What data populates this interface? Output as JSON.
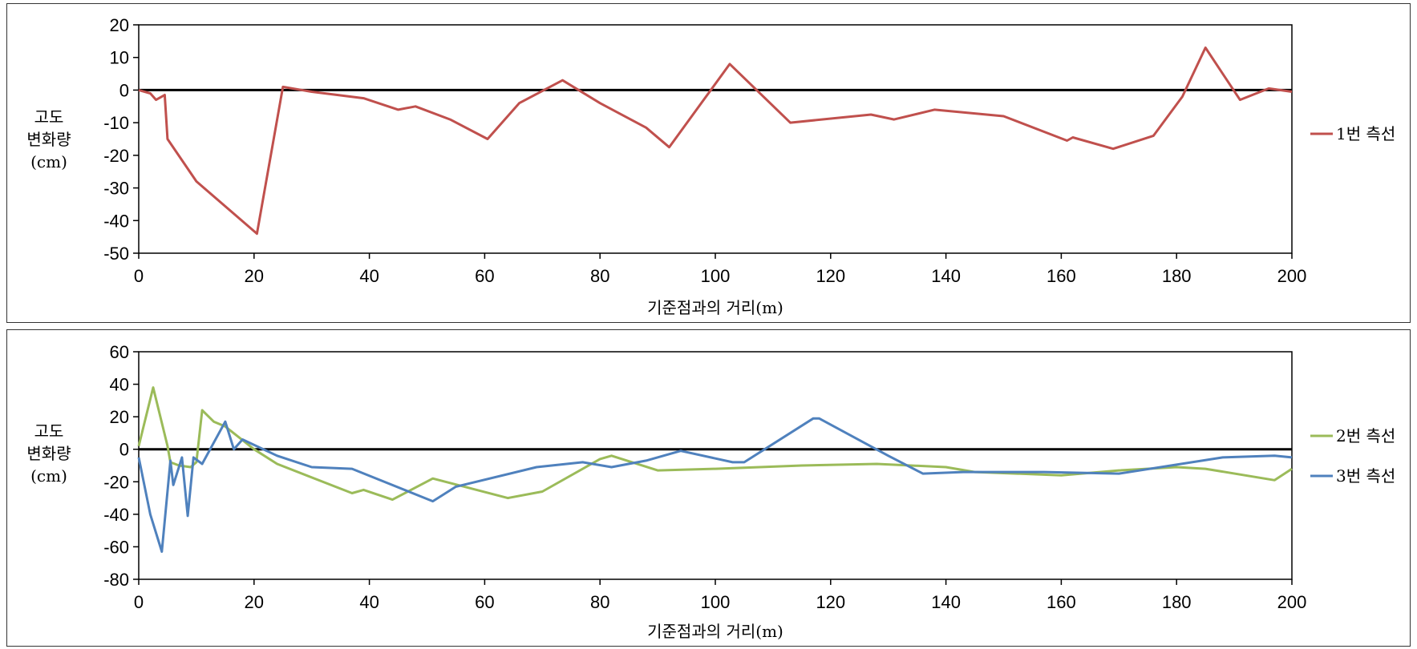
{
  "chart_data": [
    {
      "type": "line",
      "xlabel": "기준점과의 거리(m)",
      "ylabel_lines": [
        "고도",
        "변화량",
        "(cm)"
      ],
      "xlim": [
        0,
        200
      ],
      "ylim": [
        -50,
        20
      ],
      "xticks": [
        0,
        20,
        40,
        60,
        80,
        100,
        120,
        140,
        160,
        180,
        200
      ],
      "yticks": [
        20,
        10,
        0,
        -10,
        -20,
        -30,
        -40,
        -50
      ],
      "grid": false,
      "legend_position": "right",
      "zero_line": true,
      "series": [
        {
          "name": "1번 측선",
          "color": "#c0504d",
          "points": [
            [
              0,
              0
            ],
            [
              2,
              -1
            ],
            [
              3,
              -3
            ],
            [
              4,
              -2
            ],
            [
              4.5,
              -1.5
            ],
            [
              5,
              -15
            ],
            [
              10,
              -28
            ],
            [
              20.5,
              -44
            ],
            [
              25,
              1
            ],
            [
              30,
              -0.5
            ],
            [
              39,
              -2.5
            ],
            [
              45,
              -6
            ],
            [
              48,
              -5
            ],
            [
              54,
              -9
            ],
            [
              60.5,
              -15
            ],
            [
              66,
              -4
            ],
            [
              73.5,
              3
            ],
            [
              80,
              -4
            ],
            [
              88,
              -11.5
            ],
            [
              92,
              -17.5
            ],
            [
              102.5,
              8
            ],
            [
              113,
              -10
            ],
            [
              127,
              -7.5
            ],
            [
              131,
              -9
            ],
            [
              138,
              -6
            ],
            [
              150,
              -8
            ],
            [
              161,
              -15.5
            ],
            [
              162,
              -14.5
            ],
            [
              169,
              -18
            ],
            [
              176,
              -14
            ],
            [
              181,
              -2
            ],
            [
              185,
              13
            ],
            [
              191,
              -3
            ],
            [
              196,
              0.5
            ],
            [
              200,
              -0.5
            ]
          ]
        }
      ]
    },
    {
      "type": "line",
      "xlabel": "기준점과의 거리(m)",
      "ylabel_lines": [
        "고도",
        "변화량",
        "(cm)"
      ],
      "xlim": [
        0,
        200
      ],
      "ylim": [
        -80,
        60
      ],
      "xticks": [
        0,
        20,
        40,
        60,
        80,
        100,
        120,
        140,
        160,
        180,
        200
      ],
      "yticks": [
        60,
        40,
        20,
        0,
        -20,
        -40,
        -60,
        -80
      ],
      "grid": false,
      "legend_position": "right",
      "zero_line": true,
      "series": [
        {
          "name": "2번 측선",
          "color": "#9bbb59",
          "points": [
            [
              0,
              2
            ],
            [
              2.5,
              38
            ],
            [
              5,
              2
            ],
            [
              5.5,
              -8
            ],
            [
              7,
              -10
            ],
            [
              9,
              -11
            ],
            [
              10,
              -8
            ],
            [
              11,
              24
            ],
            [
              13,
              17
            ],
            [
              15,
              14
            ],
            [
              20,
              0
            ],
            [
              24,
              -9
            ],
            [
              37,
              -27
            ],
            [
              39,
              -25
            ],
            [
              44,
              -31
            ],
            [
              51,
              -18
            ],
            [
              64,
              -30
            ],
            [
              70,
              -26
            ],
            [
              80,
              -6
            ],
            [
              82,
              -4
            ],
            [
              90,
              -13
            ],
            [
              100,
              -12
            ],
            [
              115,
              -10
            ],
            [
              128,
              -9
            ],
            [
              140,
              -11
            ],
            [
              145,
              -14
            ],
            [
              160,
              -16
            ],
            [
              170,
              -13
            ],
            [
              180,
              -11
            ],
            [
              185,
              -12
            ],
            [
              197,
              -19
            ],
            [
              200,
              -12
            ]
          ]
        },
        {
          "name": "3번 측선",
          "color": "#4f81bd",
          "points": [
            [
              0,
              -5
            ],
            [
              2,
              -40
            ],
            [
              4,
              -63
            ],
            [
              5.5,
              -7
            ],
            [
              6,
              -22
            ],
            [
              7.5,
              -5
            ],
            [
              8.5,
              -41
            ],
            [
              9.5,
              -5
            ],
            [
              11,
              -9
            ],
            [
              15,
              17
            ],
            [
              16.5,
              0
            ],
            [
              18,
              6
            ],
            [
              24,
              -4
            ],
            [
              30,
              -11
            ],
            [
              37,
              -12
            ],
            [
              51,
              -32
            ],
            [
              55,
              -23
            ],
            [
              69,
              -11
            ],
            [
              77,
              -8
            ],
            [
              82,
              -11
            ],
            [
              88,
              -7
            ],
            [
              94,
              -1
            ],
            [
              103,
              -8
            ],
            [
              105,
              -8
            ],
            [
              117,
              19
            ],
            [
              118,
              19
            ],
            [
              130,
              -4
            ],
            [
              136,
              -15
            ],
            [
              143,
              -14
            ],
            [
              157,
              -14
            ],
            [
              170,
              -15
            ],
            [
              188,
              -5
            ],
            [
              197,
              -4
            ],
            [
              200,
              -5
            ]
          ]
        }
      ]
    }
  ]
}
